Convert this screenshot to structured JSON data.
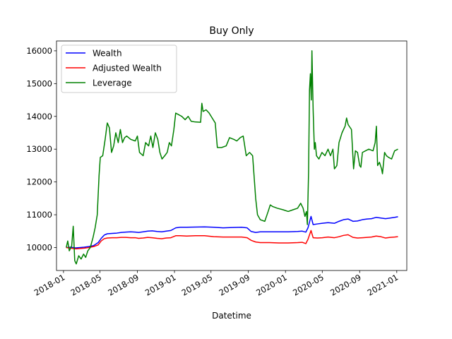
{
  "chart_data": {
    "type": "line",
    "title": "Buy Only",
    "xlabel": "Datetime",
    "ylabel": "",
    "x_ticks": [
      "2018-01",
      "2018-05",
      "2018-09",
      "2019-01",
      "2019-05",
      "2019-09",
      "2020-01",
      "2020-05",
      "2020-09",
      "2021-01"
    ],
    "y_ticks": [
      10000,
      11000,
      12000,
      13000,
      14000,
      15000,
      16000
    ],
    "xlim": [
      "2017-12-09",
      "2021-02-03"
    ],
    "ylim": [
      9300,
      16300
    ],
    "grid": false,
    "legend_position": "upper-left",
    "series": [
      {
        "name": "Wealth",
        "color": "#0000ff",
        "points": [
          [
            "2018-01-10",
            10000
          ],
          [
            "2018-01-25",
            10010
          ],
          [
            "2018-02-10",
            9990
          ],
          [
            "2018-02-25",
            10000
          ],
          [
            "2018-03-10",
            10010
          ],
          [
            "2018-03-25",
            10030
          ],
          [
            "2018-04-10",
            10060
          ],
          [
            "2018-04-25",
            10150
          ],
          [
            "2018-05-05",
            10280
          ],
          [
            "2018-05-15",
            10380
          ],
          [
            "2018-05-25",
            10420
          ],
          [
            "2018-06-10",
            10430
          ],
          [
            "2018-06-25",
            10440
          ],
          [
            "2018-07-10",
            10460
          ],
          [
            "2018-07-25",
            10470
          ],
          [
            "2018-08-10",
            10480
          ],
          [
            "2018-08-25",
            10470
          ],
          [
            "2018-09-05",
            10460
          ],
          [
            "2018-09-20",
            10480
          ],
          [
            "2018-10-05",
            10500
          ],
          [
            "2018-10-20",
            10510
          ],
          [
            "2018-11-05",
            10490
          ],
          [
            "2018-11-20",
            10480
          ],
          [
            "2018-12-05",
            10500
          ],
          [
            "2018-12-20",
            10520
          ],
          [
            "2019-01-05",
            10600
          ],
          [
            "2019-01-20",
            10620
          ],
          [
            "2019-02-10",
            10620
          ],
          [
            "2019-03-10",
            10625
          ],
          [
            "2019-04-10",
            10630
          ],
          [
            "2019-05-10",
            10620
          ],
          [
            "2019-06-10",
            10600
          ],
          [
            "2019-07-10",
            10610
          ],
          [
            "2019-08-10",
            10620
          ],
          [
            "2019-08-28",
            10600
          ],
          [
            "2019-09-10",
            10490
          ],
          [
            "2019-09-25",
            10460
          ],
          [
            "2019-10-10",
            10480
          ],
          [
            "2019-11-10",
            10480
          ],
          [
            "2019-12-10",
            10480
          ],
          [
            "2020-01-10",
            10480
          ],
          [
            "2020-02-10",
            10490
          ],
          [
            "2020-02-25",
            10500
          ],
          [
            "2020-03-08",
            10470
          ],
          [
            "2020-03-15",
            10600
          ],
          [
            "2020-03-25",
            10950
          ],
          [
            "2020-04-01",
            10700
          ],
          [
            "2020-04-15",
            10720
          ],
          [
            "2020-05-01",
            10740
          ],
          [
            "2020-05-20",
            10760
          ],
          [
            "2020-06-10",
            10740
          ],
          [
            "2020-06-25",
            10800
          ],
          [
            "2020-07-10",
            10850
          ],
          [
            "2020-07-25",
            10870
          ],
          [
            "2020-08-10",
            10800
          ],
          [
            "2020-08-25",
            10810
          ],
          [
            "2020-09-10",
            10850
          ],
          [
            "2020-09-25",
            10870
          ],
          [
            "2020-10-10",
            10880
          ],
          [
            "2020-10-25",
            10920
          ],
          [
            "2020-11-10",
            10900
          ],
          [
            "2020-11-25",
            10880
          ],
          [
            "2020-12-10",
            10900
          ],
          [
            "2020-12-25",
            10920
          ],
          [
            "2021-01-05",
            10940
          ]
        ]
      },
      {
        "name": "Adjusted Wealth",
        "color": "#ff0000",
        "points": [
          [
            "2018-01-10",
            10000
          ],
          [
            "2018-01-25",
            9980
          ],
          [
            "2018-02-10",
            9960
          ],
          [
            "2018-02-25",
            9970
          ],
          [
            "2018-03-10",
            9980
          ],
          [
            "2018-03-25",
            10000
          ],
          [
            "2018-04-10",
            10030
          ],
          [
            "2018-04-25",
            10080
          ],
          [
            "2018-05-05",
            10200
          ],
          [
            "2018-05-15",
            10270
          ],
          [
            "2018-05-25",
            10290
          ],
          [
            "2018-06-10",
            10300
          ],
          [
            "2018-06-25",
            10300
          ],
          [
            "2018-07-10",
            10310
          ],
          [
            "2018-07-25",
            10310
          ],
          [
            "2018-08-10",
            10300
          ],
          [
            "2018-08-25",
            10300
          ],
          [
            "2018-09-05",
            10280
          ],
          [
            "2018-09-20",
            10290
          ],
          [
            "2018-10-05",
            10310
          ],
          [
            "2018-10-20",
            10300
          ],
          [
            "2018-11-05",
            10280
          ],
          [
            "2018-11-20",
            10270
          ],
          [
            "2018-12-05",
            10290
          ],
          [
            "2018-12-20",
            10300
          ],
          [
            "2019-01-05",
            10360
          ],
          [
            "2019-01-20",
            10360
          ],
          [
            "2019-02-10",
            10350
          ],
          [
            "2019-03-10",
            10360
          ],
          [
            "2019-04-10",
            10360
          ],
          [
            "2019-05-10",
            10330
          ],
          [
            "2019-06-10",
            10320
          ],
          [
            "2019-07-10",
            10320
          ],
          [
            "2019-08-10",
            10320
          ],
          [
            "2019-08-28",
            10300
          ],
          [
            "2019-09-10",
            10220
          ],
          [
            "2019-09-25",
            10170
          ],
          [
            "2019-10-10",
            10150
          ],
          [
            "2019-11-10",
            10150
          ],
          [
            "2019-12-10",
            10140
          ],
          [
            "2020-01-10",
            10140
          ],
          [
            "2020-02-10",
            10150
          ],
          [
            "2020-02-25",
            10160
          ],
          [
            "2020-03-08",
            10120
          ],
          [
            "2020-03-15",
            10250
          ],
          [
            "2020-03-25",
            10520
          ],
          [
            "2020-04-01",
            10300
          ],
          [
            "2020-04-15",
            10290
          ],
          [
            "2020-05-01",
            10300
          ],
          [
            "2020-05-20",
            10320
          ],
          [
            "2020-06-10",
            10300
          ],
          [
            "2020-06-25",
            10330
          ],
          [
            "2020-07-10",
            10370
          ],
          [
            "2020-07-25",
            10390
          ],
          [
            "2020-08-10",
            10310
          ],
          [
            "2020-08-25",
            10290
          ],
          [
            "2020-09-10",
            10300
          ],
          [
            "2020-09-25",
            10310
          ],
          [
            "2020-10-10",
            10320
          ],
          [
            "2020-10-25",
            10350
          ],
          [
            "2020-11-10",
            10330
          ],
          [
            "2020-11-25",
            10290
          ],
          [
            "2020-12-10",
            10310
          ],
          [
            "2020-12-25",
            10320
          ],
          [
            "2021-01-05",
            10330
          ]
        ]
      },
      {
        "name": "Leverage",
        "color": "#008000",
        "points": [
          [
            "2018-01-10",
            10000
          ],
          [
            "2018-01-15",
            10200
          ],
          [
            "2018-01-20",
            9900
          ],
          [
            "2018-01-28",
            10050
          ],
          [
            "2018-02-02",
            10650
          ],
          [
            "2018-02-07",
            9600
          ],
          [
            "2018-02-12",
            9500
          ],
          [
            "2018-02-20",
            9750
          ],
          [
            "2018-02-28",
            9650
          ],
          [
            "2018-03-08",
            9800
          ],
          [
            "2018-03-15",
            9700
          ],
          [
            "2018-03-22",
            9900
          ],
          [
            "2018-03-30",
            10000
          ],
          [
            "2018-04-08",
            10300
          ],
          [
            "2018-04-15",
            10600
          ],
          [
            "2018-04-22",
            11000
          ],
          [
            "2018-04-28",
            12200
          ],
          [
            "2018-05-02",
            12750
          ],
          [
            "2018-05-10",
            12800
          ],
          [
            "2018-05-18",
            13300
          ],
          [
            "2018-05-25",
            13800
          ],
          [
            "2018-06-01",
            13650
          ],
          [
            "2018-06-08",
            12900
          ],
          [
            "2018-06-15",
            13100
          ],
          [
            "2018-06-22",
            13500
          ],
          [
            "2018-06-30",
            13200
          ],
          [
            "2018-07-07",
            13600
          ],
          [
            "2018-07-14",
            13200
          ],
          [
            "2018-07-21",
            13350
          ],
          [
            "2018-07-28",
            13400
          ],
          [
            "2018-08-10",
            13300
          ],
          [
            "2018-08-25",
            13250
          ],
          [
            "2018-09-01",
            13400
          ],
          [
            "2018-09-08",
            12900
          ],
          [
            "2018-09-20",
            12800
          ],
          [
            "2018-09-28",
            13200
          ],
          [
            "2018-10-08",
            13100
          ],
          [
            "2018-10-15",
            13400
          ],
          [
            "2018-10-22",
            13050
          ],
          [
            "2018-10-30",
            13500
          ],
          [
            "2018-11-07",
            13300
          ],
          [
            "2018-11-14",
            12900
          ],
          [
            "2018-11-21",
            12700
          ],
          [
            "2018-11-30",
            12800
          ],
          [
            "2018-12-08",
            12900
          ],
          [
            "2018-12-15",
            13200
          ],
          [
            "2018-12-22",
            13100
          ],
          [
            "2018-12-30",
            13600
          ],
          [
            "2019-01-05",
            14100
          ],
          [
            "2019-01-15",
            14050
          ],
          [
            "2019-01-25",
            14000
          ],
          [
            "2019-02-05",
            13900
          ],
          [
            "2019-02-15",
            14000
          ],
          [
            "2019-02-25",
            13850
          ],
          [
            "2019-03-10",
            13830
          ],
          [
            "2019-03-28",
            13820
          ],
          [
            "2019-04-01",
            14400
          ],
          [
            "2019-04-05",
            14150
          ],
          [
            "2019-04-15",
            14200
          ],
          [
            "2019-04-25",
            14100
          ],
          [
            "2019-05-05",
            13950
          ],
          [
            "2019-05-15",
            13800
          ],
          [
            "2019-05-22",
            13050
          ],
          [
            "2019-06-05",
            13050
          ],
          [
            "2019-06-20",
            13100
          ],
          [
            "2019-07-01",
            13350
          ],
          [
            "2019-07-15",
            13300
          ],
          [
            "2019-07-25",
            13250
          ],
          [
            "2019-08-05",
            13350
          ],
          [
            "2019-08-15",
            13400
          ],
          [
            "2019-08-25",
            12800
          ],
          [
            "2019-09-05",
            12900
          ],
          [
            "2019-09-15",
            12800
          ],
          [
            "2019-09-25",
            11500
          ],
          [
            "2019-10-01",
            11000
          ],
          [
            "2019-10-10",
            10850
          ],
          [
            "2019-10-25",
            10800
          ],
          [
            "2019-11-05",
            11100
          ],
          [
            "2019-11-12",
            11300
          ],
          [
            "2019-11-20",
            11250
          ],
          [
            "2019-12-05",
            11200
          ],
          [
            "2019-12-25",
            11150
          ],
          [
            "2020-01-10",
            11100
          ],
          [
            "2020-01-25",
            11150
          ],
          [
            "2020-02-10",
            11200
          ],
          [
            "2020-02-20",
            11350
          ],
          [
            "2020-02-28",
            11200
          ],
          [
            "2020-03-05",
            10950
          ],
          [
            "2020-03-10",
            11100
          ],
          [
            "2020-03-13",
            10700
          ],
          [
            "2020-03-17",
            12300
          ],
          [
            "2020-03-20",
            14800
          ],
          [
            "2020-03-23",
            15300
          ],
          [
            "2020-03-26",
            14500
          ],
          [
            "2020-03-28",
            16000
          ],
          [
            "2020-04-01",
            14200
          ],
          [
            "2020-04-05",
            13000
          ],
          [
            "2020-04-08",
            13200
          ],
          [
            "2020-04-12",
            12800
          ],
          [
            "2020-04-20",
            12700
          ],
          [
            "2020-04-30",
            12900
          ],
          [
            "2020-05-10",
            12800
          ],
          [
            "2020-05-20",
            13000
          ],
          [
            "2020-05-28",
            12800
          ],
          [
            "2020-06-05",
            13000
          ],
          [
            "2020-06-10",
            12400
          ],
          [
            "2020-06-18",
            12500
          ],
          [
            "2020-06-25",
            13200
          ],
          [
            "2020-07-05",
            13500
          ],
          [
            "2020-07-15",
            13700
          ],
          [
            "2020-07-20",
            13950
          ],
          [
            "2020-07-25",
            13750
          ],
          [
            "2020-08-05",
            13600
          ],
          [
            "2020-08-12",
            12400
          ],
          [
            "2020-08-18",
            12950
          ],
          [
            "2020-08-25",
            12900
          ],
          [
            "2020-09-01",
            12500
          ],
          [
            "2020-09-05",
            12450
          ],
          [
            "2020-09-10",
            12900
          ],
          [
            "2020-09-20",
            12950
          ],
          [
            "2020-10-01",
            13000
          ],
          [
            "2020-10-15",
            12950
          ],
          [
            "2020-10-22",
            13200
          ],
          [
            "2020-10-26",
            13700
          ],
          [
            "2020-10-30",
            12500
          ],
          [
            "2020-11-05",
            12600
          ],
          [
            "2020-11-12",
            12400
          ],
          [
            "2020-11-15",
            12250
          ],
          [
            "2020-11-22",
            12900
          ],
          [
            "2020-11-28",
            12800
          ],
          [
            "2020-12-05",
            12750
          ],
          [
            "2020-12-15",
            12700
          ],
          [
            "2020-12-25",
            12950
          ],
          [
            "2021-01-05",
            13000
          ]
        ]
      }
    ]
  }
}
